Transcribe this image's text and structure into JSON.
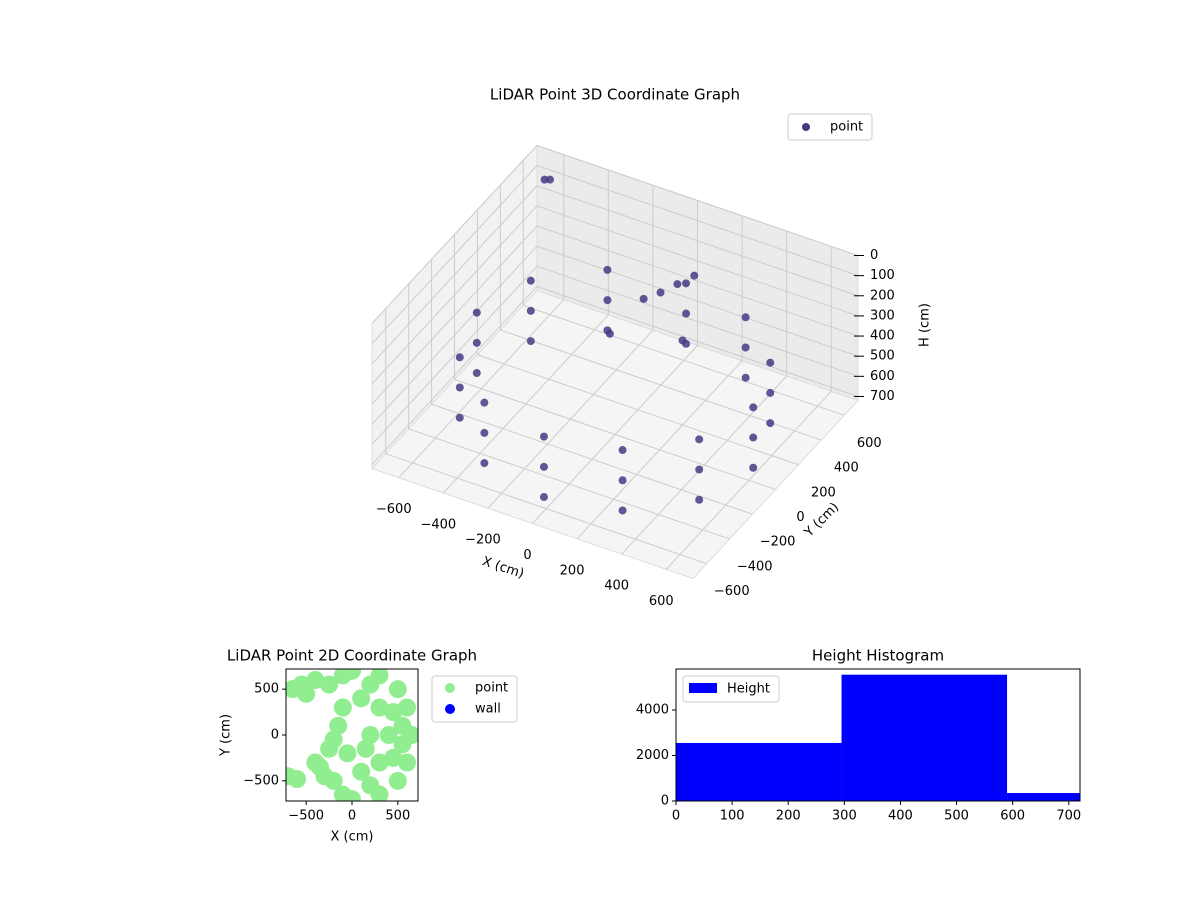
{
  "chart_data": [
    {
      "type": "scatter3d",
      "title": "LiDAR Point 3D Coordinate Graph",
      "xlabel": "X (cm)",
      "ylabel": "Y (cm)",
      "zlabel": "H (cm)",
      "xlim": [
        -720,
        720
      ],
      "ylim": [
        -720,
        720
      ],
      "zlim": [
        0,
        720
      ],
      "xticks": [
        {
          "value": -600,
          "label": "−600"
        },
        {
          "value": -400,
          "label": "−400"
        },
        {
          "value": -200,
          "label": "−200"
        },
        0,
        200,
        400,
        600
      ],
      "yticks": [
        {
          "value": -600,
          "label": "−600"
        },
        {
          "value": -400,
          "label": "−400"
        },
        {
          "value": -200,
          "label": "−200"
        },
        0,
        200,
        400,
        600
      ],
      "zticks": [
        0,
        100,
        200,
        300,
        400,
        500,
        600,
        700
      ],
      "legend": "upper right",
      "grid": true,
      "series": [
        {
          "name": "point",
          "color": "#443983",
          "x": [
            620,
            537,
            310,
            0,
            -310,
            -537,
            -620,
            -537,
            -310,
            0,
            310,
            537,
            620,
            537,
            310,
            0,
            -310,
            -537,
            -620,
            -537,
            -310,
            0,
            310,
            537,
            620,
            537,
            310,
            0,
            -310,
            -537,
            -620,
            -537,
            -310,
            0,
            310,
            537,
            100,
            50,
            150,
            0,
            200,
            -100,
            -600,
            -650
          ],
          "y": [
            0,
            310,
            537,
            620,
            537,
            310,
            0,
            -310,
            -537,
            -620,
            -537,
            -310,
            0,
            310,
            537,
            620,
            537,
            310,
            0,
            -310,
            -537,
            -620,
            -537,
            -310,
            0,
            310,
            537,
            620,
            537,
            310,
            0,
            -310,
            -537,
            -620,
            -537,
            -310,
            350,
            300,
            400,
            250,
            200,
            150,
            600,
            650
          ],
          "z": [
            350,
            350,
            350,
            350,
            350,
            350,
            350,
            350,
            350,
            350,
            350,
            350,
            500,
            500,
            500,
            500,
            500,
            500,
            500,
            500,
            500,
            500,
            500,
            500,
            650,
            650,
            650,
            650,
            650,
            650,
            650,
            650,
            650,
            650,
            650,
            650,
            150,
            180,
            120,
            200,
            300,
            350,
            50,
            100
          ]
        }
      ]
    },
    {
      "type": "scatter",
      "title": "LiDAR Point 2D Coordinate Graph",
      "xlabel": "X (cm)",
      "ylabel": "Y (cm)",
      "xlim": [
        -720,
        720
      ],
      "ylim": [
        -720,
        720
      ],
      "xticks": [
        {
          "value": -500,
          "label": "−500"
        },
        0,
        500
      ],
      "yticks": [
        {
          "value": -500,
          "label": "−500"
        },
        0,
        500
      ],
      "legend": "outside right",
      "series": [
        {
          "name": "point",
          "color": "#90ee90",
          "x": [
            650,
            600,
            600,
            500,
            500,
            300,
            300,
            0,
            0,
            -100,
            -100,
            400,
            300,
            300,
            200,
            100,
            100,
            150,
            450,
            450,
            -200,
            -300,
            -400,
            -250,
            -200,
            -150,
            -350,
            -550,
            -400,
            -250,
            -650,
            -500,
            -700,
            -600,
            -100,
            -50,
            200,
            200,
            550,
            550
          ],
          "y": [
            0,
            300,
            -300,
            500,
            -500,
            650,
            -650,
            700,
            -700,
            650,
            -650,
            0,
            300,
            -300,
            0,
            400,
            -400,
            -150,
            250,
            -250,
            -500,
            -450,
            -300,
            -150,
            -50,
            100,
            -350,
            550,
            600,
            550,
            500,
            450,
            -450,
            -480,
            300,
            -200,
            550,
            -550,
            100,
            -100
          ]
        },
        {
          "name": "wall",
          "color": "#0000ff",
          "x": [],
          "y": []
        }
      ]
    },
    {
      "type": "histogram",
      "title": "Height Histogram",
      "legend": "upper left",
      "series": [
        {
          "name": "Height",
          "color": "#0000ff"
        }
      ],
      "bins": [
        0,
        295,
        590,
        720
      ],
      "values": [
        2550,
        5550,
        350
      ],
      "xlim": [
        0,
        720
      ],
      "ylim": [
        0,
        5800
      ],
      "xticks": [
        0,
        100,
        200,
        300,
        400,
        500,
        600,
        700
      ],
      "yticks": [
        0,
        2000,
        4000
      ]
    }
  ]
}
